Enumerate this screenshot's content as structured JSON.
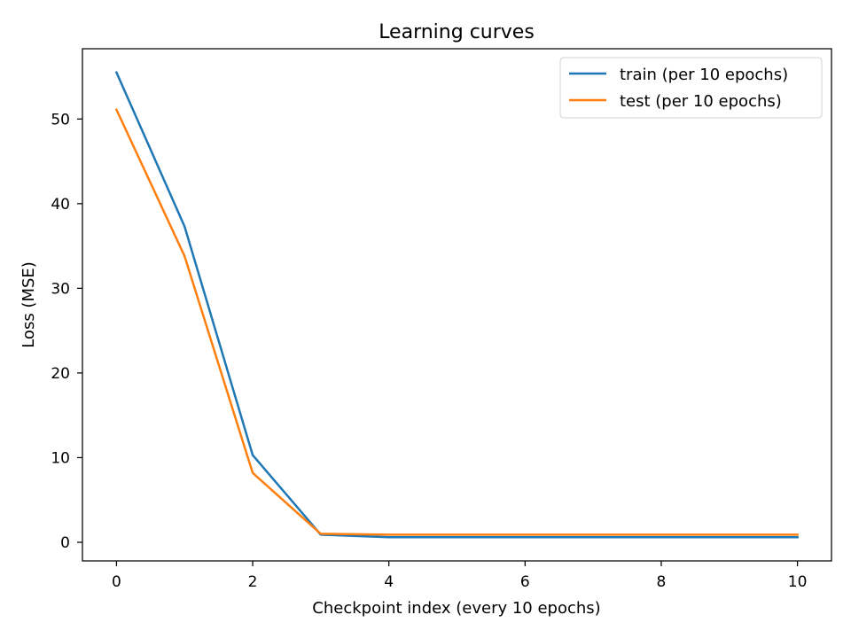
{
  "chart_data": {
    "type": "line",
    "title": "Learning curves",
    "xlabel": "Checkpoint index (every 10 epochs)",
    "ylabel": "Loss (MSE)",
    "x": [
      0,
      1,
      2,
      3,
      4,
      5,
      6,
      7,
      8,
      9,
      10
    ],
    "xlim": [
      -0.5,
      10.5
    ],
    "ylim": [
      -2.2,
      58.3
    ],
    "xticks": [
      0,
      2,
      4,
      6,
      8,
      10
    ],
    "yticks": [
      0,
      10,
      20,
      30,
      40,
      50
    ],
    "grid": false,
    "legend_position": "top-right",
    "series": [
      {
        "name": "train (per 10 epochs)",
        "color": "#1f77b4",
        "values": [
          55.5,
          37.3,
          10.3,
          0.9,
          0.6,
          0.6,
          0.6,
          0.6,
          0.6,
          0.6,
          0.6
        ]
      },
      {
        "name": "test (per 10 epochs)",
        "color": "#ff7f0e",
        "values": [
          51.1,
          33.8,
          8.2,
          1.0,
          0.9,
          0.9,
          0.9,
          0.9,
          0.9,
          0.9,
          0.9
        ]
      }
    ]
  }
}
